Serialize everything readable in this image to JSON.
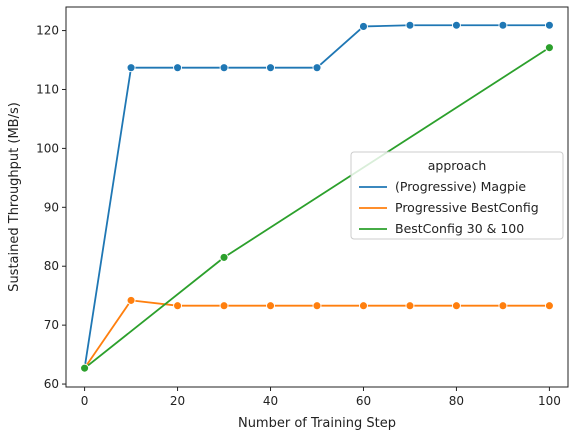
{
  "chart_data": {
    "type": "line",
    "title": "",
    "xlabel": "Number of Training Step",
    "ylabel": "Sustained Throughput (MB/s)",
    "xlim": [
      -4,
      104
    ],
    "ylim": [
      59.5,
      124
    ],
    "xticks": [
      0,
      20,
      40,
      60,
      80,
      100
    ],
    "yticks": [
      60,
      70,
      80,
      90,
      100,
      110,
      120
    ],
    "grid": false,
    "legend": {
      "title": "approach",
      "placement": "center-right"
    },
    "series": [
      {
        "name": "(Progressive) Magpie",
        "color": "#1f77b4",
        "x": [
          0,
          10,
          20,
          30,
          40,
          50,
          60,
          70,
          80,
          90,
          100
        ],
        "y": [
          62.7,
          113.7,
          113.7,
          113.7,
          113.7,
          113.7,
          120.7,
          120.9,
          120.9,
          120.9,
          120.9
        ]
      },
      {
        "name": "Progressive BestConfig",
        "color": "#ff7f0e",
        "x": [
          0,
          10,
          20,
          30,
          40,
          50,
          60,
          70,
          80,
          90,
          100
        ],
        "y": [
          62.7,
          74.2,
          73.3,
          73.3,
          73.3,
          73.3,
          73.3,
          73.3,
          73.3,
          73.3,
          73.3
        ]
      },
      {
        "name": "BestConfig 30 & 100",
        "color": "#2ca02c",
        "x": [
          0,
          30,
          100
        ],
        "y": [
          62.7,
          81.5,
          117.1
        ]
      }
    ]
  }
}
